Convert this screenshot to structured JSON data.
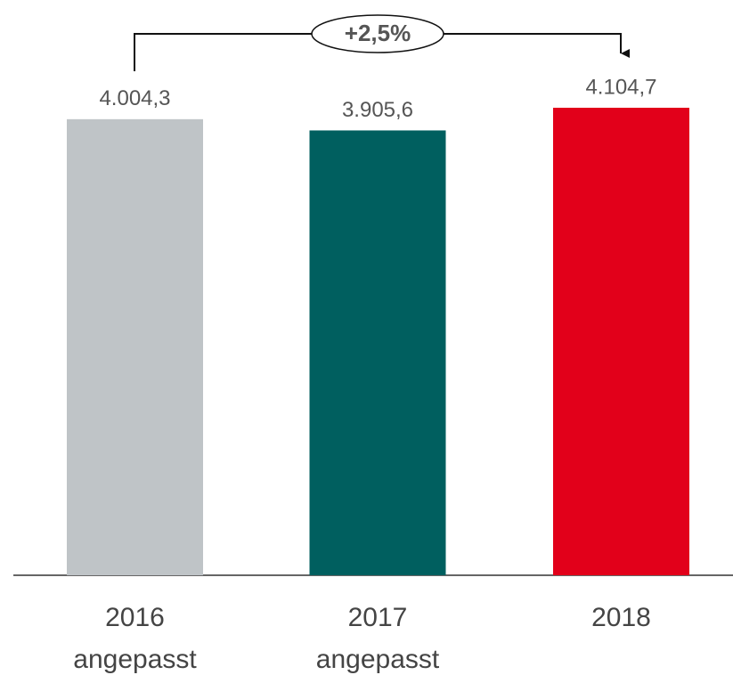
{
  "chart_data": {
    "type": "bar",
    "categories": [
      "2016 angepasst",
      "2017 angepasst",
      "2018"
    ],
    "values": [
      4004.3,
      3905.6,
      4104.7
    ],
    "value_labels": [
      "4.004,3",
      "3.905,6",
      "4.104,7"
    ],
    "colors": [
      "#bfc4c7",
      "#005f5f",
      "#e2001a"
    ],
    "annotation": "+2,5%"
  }
}
